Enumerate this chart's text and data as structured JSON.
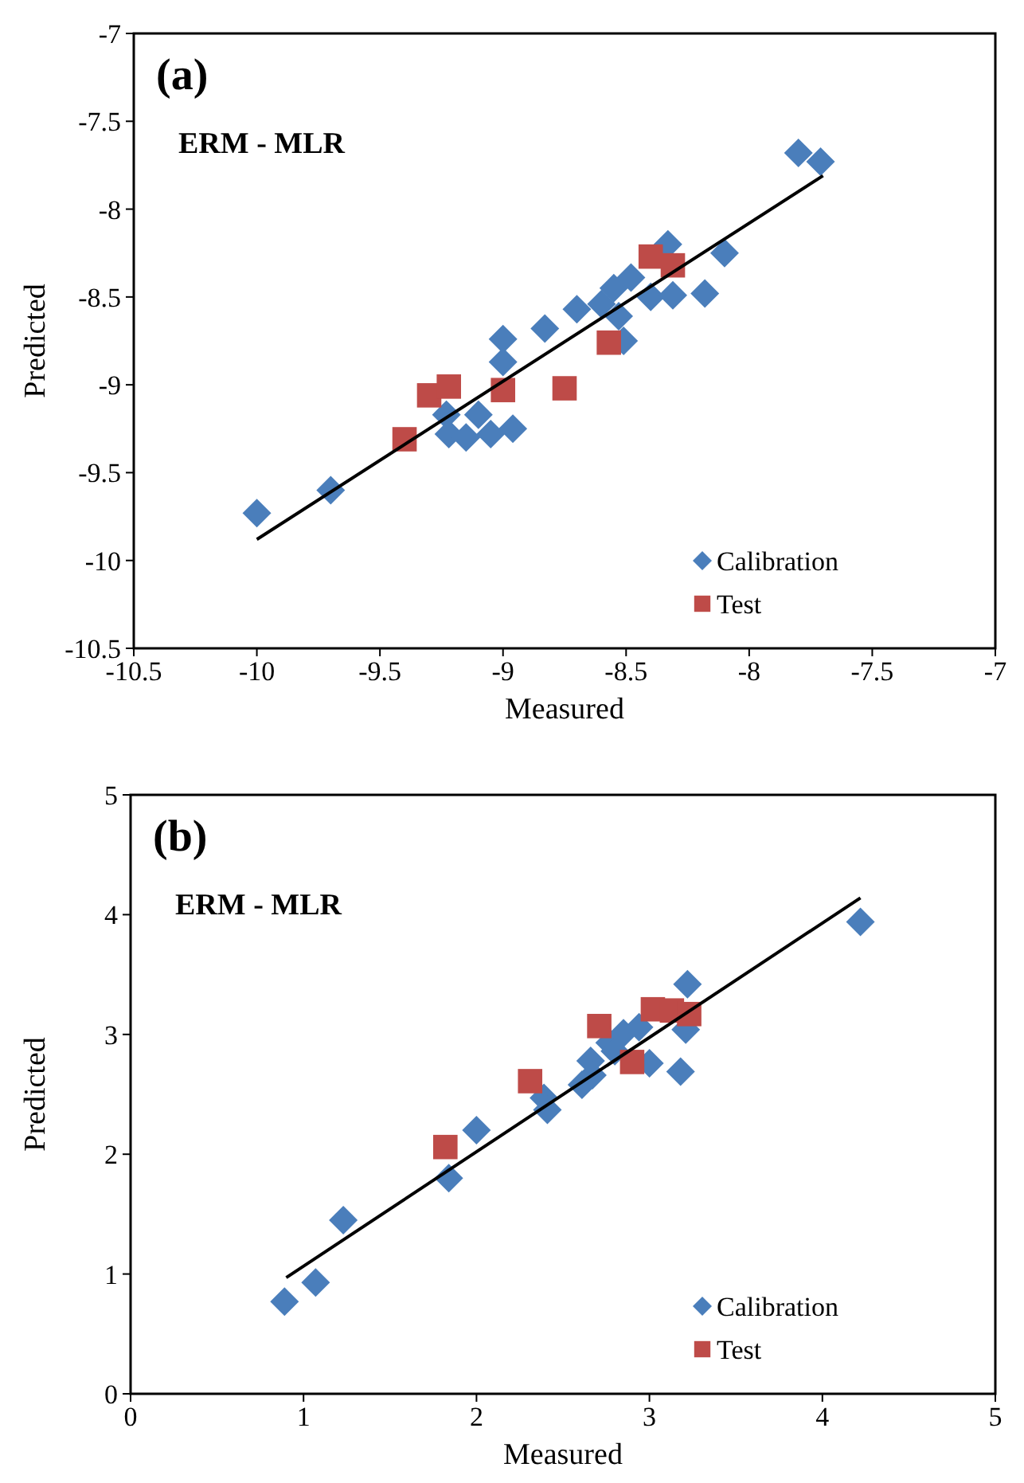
{
  "chart_data": [
    {
      "type": "scatter",
      "title": "(a)",
      "subtitle": "ERM - MLR",
      "xlabel": "Measured",
      "ylabel": "Predicted",
      "xlim": [
        -10.5,
        -7
      ],
      "ylim": [
        -10.5,
        -7
      ],
      "xticks": [
        -10.5,
        -10,
        -9.5,
        -9,
        -8.5,
        -8,
        -7.5,
        -7
      ],
      "yticks": [
        -10.5,
        -10,
        -9.5,
        -9,
        -8.5,
        -8,
        -7.5,
        -7
      ],
      "grid": false,
      "legend": "bottom right",
      "series": [
        {
          "name": "Calibration",
          "color": "#4a7ebb",
          "marker": "diamond",
          "x": [
            -10.0,
            -9.7,
            -9.23,
            -9.22,
            -9.15,
            -9.1,
            -9.05,
            -8.96,
            -9.0,
            -9.0,
            -8.83,
            -8.7,
            -8.6,
            -8.55,
            -8.53,
            -8.51,
            -8.48,
            -8.4,
            -8.33,
            -8.31,
            -8.18,
            -8.1,
            -7.8,
            -7.71
          ],
          "values": [
            -9.73,
            -9.6,
            -9.17,
            -9.28,
            -9.3,
            -9.17,
            -9.28,
            -9.25,
            -8.74,
            -8.87,
            -8.68,
            -8.57,
            -8.54,
            -8.45,
            -8.61,
            -8.75,
            -8.39,
            -8.5,
            -8.2,
            -8.49,
            -8.48,
            -8.25,
            -7.68,
            -7.73
          ]
        },
        {
          "name": "Test",
          "color": "#be4b48",
          "marker": "square",
          "x": [
            -9.4,
            -9.3,
            -9.22,
            -9.0,
            -8.75,
            -8.57,
            -8.4,
            -8.31
          ],
          "values": [
            -9.31,
            -9.06,
            -9.01,
            -9.03,
            -9.02,
            -8.76,
            -8.27,
            -8.32
          ]
        },
        {
          "type": "line",
          "color": "#000000",
          "marker": "none",
          "x": [
            -10.0,
            -7.7
          ],
          "values": [
            -9.88,
            -7.81
          ]
        }
      ]
    },
    {
      "type": "scatter",
      "title": "(b)",
      "subtitle": "ERM - MLR",
      "xlabel": "Measured",
      "ylabel": "Predicted",
      "xlim": [
        0,
        5
      ],
      "ylim": [
        0,
        5
      ],
      "xticks": [
        0,
        1,
        2,
        3,
        4,
        5
      ],
      "yticks": [
        0,
        1,
        2,
        3,
        4,
        5
      ],
      "grid": false,
      "legend": "bottom right",
      "series": [
        {
          "name": "Calibration",
          "color": "#4a7ebb",
          "marker": "diamond",
          "x": [
            0.89,
            1.07,
            1.23,
            1.84,
            2.0,
            2.39,
            2.41,
            2.61,
            2.66,
            2.67,
            2.77,
            2.8,
            2.85,
            2.94,
            3.0,
            3.18,
            3.21,
            3.22,
            4.22
          ],
          "values": [
            0.77,
            0.93,
            1.45,
            1.8,
            2.2,
            2.47,
            2.37,
            2.58,
            2.78,
            2.66,
            2.93,
            2.86,
            3.01,
            3.06,
            2.76,
            2.69,
            3.04,
            3.42,
            3.94
          ]
        },
        {
          "name": "Test",
          "color": "#be4b48",
          "marker": "square",
          "x": [
            1.82,
            2.31,
            2.71,
            2.9,
            3.02,
            3.13,
            3.23
          ],
          "values": [
            2.06,
            2.61,
            3.07,
            2.77,
            3.21,
            3.2,
            3.17
          ]
        },
        {
          "type": "line",
          "color": "#000000",
          "marker": "none",
          "x": [
            0.9,
            4.22
          ],
          "values": [
            0.97,
            4.14
          ]
        }
      ]
    }
  ]
}
